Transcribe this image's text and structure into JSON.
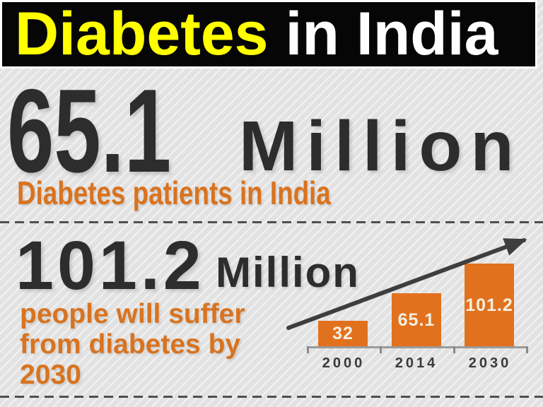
{
  "header": {
    "title_highlight": "Diabetes",
    "title_rest": "in India"
  },
  "stat_top": {
    "value": "65.1",
    "unit": "Million",
    "caption": "Diabetes patients in India"
  },
  "stat_bottom": {
    "value": "101.2",
    "unit": "Million",
    "caption": "people will suffer from diabetes by 2030"
  },
  "chart_data": {
    "type": "bar",
    "categories": [
      "2000",
      "2014",
      "2030"
    ],
    "values": [
      32,
      65.1,
      101.2
    ],
    "bar_labels": [
      "32",
      "65.1",
      "101.2"
    ],
    "title": "",
    "xlabel": "",
    "ylabel": "",
    "ylim": [
      0,
      110
    ],
    "gridlines": false,
    "legend_position": "none",
    "bar_color": "#e2711d",
    "bar_label_color": "#f4eee1",
    "trend_arrow": true
  },
  "colors": {
    "banner_bg": "#060606",
    "title_yellow": "#ffff00",
    "title_white": "#ffffff",
    "dark_text": "#2d2d2d",
    "accent_orange": "#d9731f",
    "axis_gray": "#9b9b9b",
    "arrow_gray": "#3e3e3e"
  }
}
